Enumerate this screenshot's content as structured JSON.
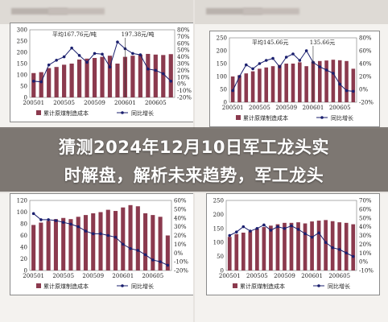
{
  "headline": {
    "line1": "猜测2024年12月10日军工龙头实",
    "line2": "时解盘，解析未来趋势，军工龙头"
  },
  "colors": {
    "bar": "#8b3a4e",
    "line": "#1a1f6e",
    "banner": "rgba(60,52,46,0.62)"
  },
  "chart_data": [
    {
      "type": "bar",
      "position": "top-left",
      "x_ticks": [
        "200501",
        "200505",
        "200509",
        "200601",
        "200605"
      ],
      "y_left": {
        "ticks": [
          "0",
          "50",
          "100",
          "150",
          "200",
          "250",
          "300"
        ],
        "range": [
          0,
          300
        ]
      },
      "y_right": {
        "ticks": [
          "-20%",
          "-10%",
          "0%",
          "10%",
          "20%",
          "30%",
          "40%",
          "50%",
          "60%",
          "70%",
          "80%"
        ],
        "range": [
          -20,
          80
        ]
      },
      "annotations": [
        "平均167.76元/吨",
        "197.38元/吨"
      ],
      "legend": [
        "累计原煤制造成本",
        "同比增长"
      ],
      "series": [
        {
          "name": "累计原煤制造成本",
          "kind": "bar",
          "values": [
            108,
            112,
            130,
            135,
            145,
            150,
            168,
            172,
            175,
            180,
            185,
            150,
            180,
            185,
            190,
            193,
            190,
            188,
            192
          ]
        },
        {
          "name": "同比增长",
          "kind": "line",
          "values": [
            4,
            3,
            28,
            35,
            40,
            53,
            42,
            32,
            45,
            44,
            25,
            62,
            52,
            45,
            43,
            22,
            20,
            15,
            4
          ]
        }
      ]
    },
    {
      "type": "bar",
      "position": "top-right",
      "x_ticks": [
        "200501",
        "200505",
        "200509",
        "200601",
        "200605"
      ],
      "y_left": {
        "ticks": [
          "0",
          "50",
          "100",
          "150",
          "200",
          "250"
        ],
        "range": [
          0,
          250
        ]
      },
      "y_right": {
        "ticks": [
          "-20%",
          "0%",
          "20%",
          "40%",
          "60%",
          "80%"
        ],
        "range": [
          -20,
          80
        ]
      },
      "annotations": [
        "平均145.66元",
        "135.66元"
      ],
      "legend": [
        "累计原煤制造成本",
        "同比增长"
      ],
      "series": [
        {
          "name": "累计原煤制造成本",
          "kind": "bar",
          "values": [
            100,
            105,
            112,
            120,
            130,
            135,
            140,
            145,
            150,
            150,
            155,
            140,
            158,
            160,
            162,
            165,
            163,
            160,
            130
          ]
        },
        {
          "name": "同比增长",
          "kind": "line",
          "values": [
            -2,
            20,
            38,
            32,
            40,
            45,
            48,
            35,
            50,
            55,
            45,
            60,
            42,
            35,
            30,
            25,
            8,
            -2,
            -3
          ]
        }
      ]
    },
    {
      "type": "bar",
      "position": "bottom-left",
      "x_ticks": [
        "200501",
        "200505",
        "200509",
        "200601",
        "200605"
      ],
      "y_left": {
        "ticks": [
          "0",
          "20",
          "40",
          "60",
          "80",
          "100",
          "120"
        ],
        "range": [
          0,
          120
        ]
      },
      "y_right": {
        "ticks": [
          "-20%",
          "-10%",
          "0%",
          "10%",
          "20%",
          "30%",
          "40%",
          "50%",
          "60%"
        ],
        "range": [
          -20,
          60
        ]
      },
      "legend": [
        "累计原煤制造成本",
        "同比增长"
      ],
      "series": [
        {
          "name": "累计原煤制造成本",
          "kind": "bar",
          "values": [
            78,
            82,
            85,
            88,
            90,
            88,
            92,
            95,
            98,
            100,
            104,
            102,
            108,
            112,
            110,
            98,
            95,
            92,
            60
          ]
        },
        {
          "name": "同比增长",
          "kind": "line",
          "values": [
            45,
            38,
            38,
            37,
            35,
            33,
            30,
            25,
            22,
            22,
            20,
            18,
            10,
            5,
            3,
            -2,
            -8,
            -10,
            -14
          ]
        }
      ]
    },
    {
      "type": "bar",
      "position": "bottom-right",
      "x_ticks": [
        "200501",
        "200505",
        "200509",
        "200601",
        "200605"
      ],
      "y_left": {
        "ticks": [
          "0",
          "50",
          "100",
          "150",
          "200",
          "250"
        ],
        "range": [
          0,
          250
        ]
      },
      "y_right": {
        "ticks": [
          "-10%",
          "0%",
          "10%",
          "20%",
          "30%",
          "40%",
          "50%",
          "60%",
          "70%"
        ],
        "range": [
          -10,
          70
        ]
      },
      "legend": [
        "累计原煤制造成本",
        "同比增长"
      ],
      "series": [
        {
          "name": "累计原煤制造成本",
          "kind": "bar",
          "values": [
            120,
            130,
            135,
            140,
            150,
            155,
            160,
            165,
            170,
            170,
            172,
            168,
            175,
            178,
            180,
            176,
            172,
            170,
            165
          ]
        },
        {
          "name": "同比增长",
          "kind": "line",
          "values": [
            30,
            34,
            40,
            35,
            38,
            42,
            36,
            40,
            38,
            41,
            37,
            32,
            28,
            33,
            22,
            16,
            14,
            10,
            6
          ]
        }
      ]
    }
  ]
}
